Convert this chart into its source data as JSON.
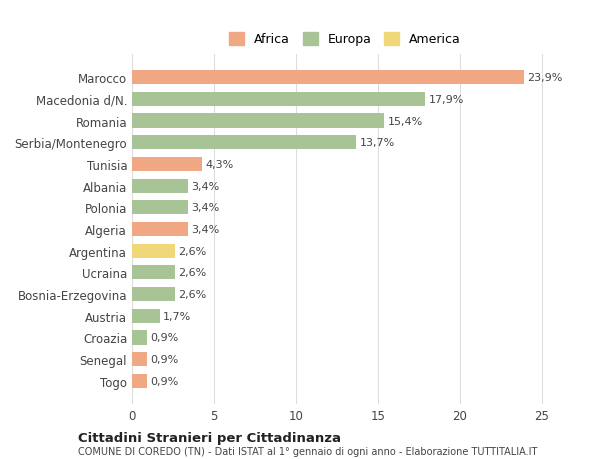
{
  "categories": [
    "Marocco",
    "Macedonia d/N.",
    "Romania",
    "Serbia/Montenegro",
    "Tunisia",
    "Albania",
    "Polonia",
    "Algeria",
    "Argentina",
    "Ucraina",
    "Bosnia-Erzegovina",
    "Austria",
    "Croazia",
    "Senegal",
    "Togo"
  ],
  "values": [
    23.9,
    17.9,
    15.4,
    13.7,
    4.3,
    3.4,
    3.4,
    3.4,
    2.6,
    2.6,
    2.6,
    1.7,
    0.9,
    0.9,
    0.9
  ],
  "labels": [
    "23,9%",
    "17,9%",
    "15,4%",
    "13,7%",
    "4,3%",
    "3,4%",
    "3,4%",
    "3,4%",
    "2,6%",
    "2,6%",
    "2,6%",
    "1,7%",
    "0,9%",
    "0,9%",
    "0,9%"
  ],
  "continents": [
    "Africa",
    "Europa",
    "Europa",
    "Europa",
    "Africa",
    "Europa",
    "Europa",
    "Africa",
    "America",
    "Europa",
    "Europa",
    "Europa",
    "Europa",
    "Africa",
    "Africa"
  ],
  "colors": {
    "Africa": "#F0A884",
    "Europa": "#A8C496",
    "America": "#F0D878"
  },
  "legend_order": [
    "Africa",
    "Europa",
    "America"
  ],
  "legend_colors": [
    "#F0A884",
    "#A8C496",
    "#F0D878"
  ],
  "title": "Cittadini Stranieri per Cittadinanza",
  "subtitle": "COMUNE DI COREDO (TN) - Dati ISTAT al 1° gennaio di ogni anno - Elaborazione TUTTITALIA.IT",
  "xlim": [
    0,
    26
  ],
  "xticks": [
    0,
    5,
    10,
    15,
    20,
    25
  ],
  "background_color": "#ffffff",
  "grid_color": "#dddddd"
}
